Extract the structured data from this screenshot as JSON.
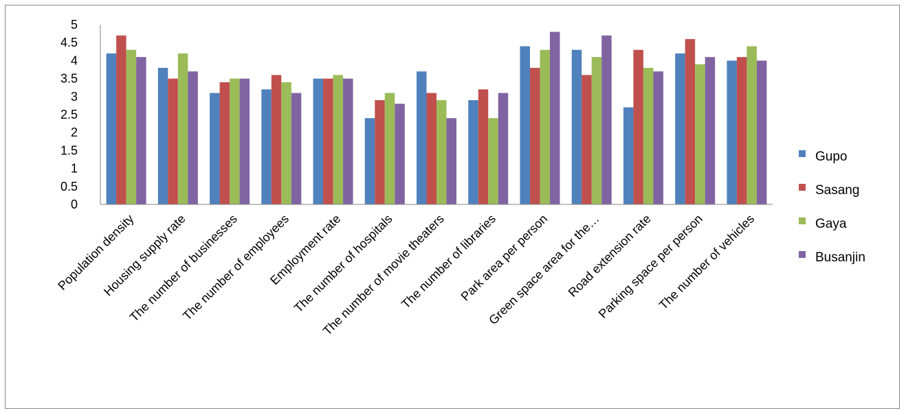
{
  "chart_data": {
    "type": "bar",
    "categories": [
      "Population density",
      "Housing supply rate",
      "The number of businesses",
      "The number of employees",
      "Employment rate",
      "The number of hospitals",
      "The number of movie theaters",
      "The number of libraries",
      "Park area per person",
      "Green space area for the…",
      "Road extension rate",
      "Parking space per person",
      "The number of vehicles"
    ],
    "series": [
      {
        "name": "Gupo",
        "color": "#4F81BD",
        "values": [
          4.2,
          3.8,
          3.1,
          3.2,
          3.5,
          2.4,
          3.7,
          2.9,
          4.4,
          4.3,
          2.7,
          4.2,
          4.0
        ]
      },
      {
        "name": "Sasang",
        "color": "#C0504D",
        "values": [
          4.7,
          3.5,
          3.4,
          3.6,
          3.5,
          2.9,
          3.1,
          3.2,
          3.8,
          3.6,
          4.3,
          4.6,
          4.1
        ]
      },
      {
        "name": "Gaya",
        "color": "#9BBB59",
        "values": [
          4.3,
          4.2,
          3.5,
          3.4,
          3.6,
          3.1,
          2.9,
          2.4,
          4.3,
          4.1,
          3.8,
          3.9,
          4.4
        ]
      },
      {
        "name": "Busanjin",
        "color": "#8064A2",
        "values": [
          4.1,
          3.7,
          3.5,
          3.1,
          3.5,
          2.8,
          2.4,
          3.1,
          4.8,
          4.7,
          3.7,
          4.1,
          4.0
        ]
      }
    ],
    "ylim": [
      0,
      5
    ],
    "yticks": [
      "0",
      "0.5",
      "1",
      "1.5",
      "2",
      "2.5",
      "3",
      "3.5",
      "4",
      "4.5",
      "5"
    ],
    "grid": false,
    "legend": "right",
    "title": "",
    "xlabel": "",
    "ylabel": ""
  }
}
